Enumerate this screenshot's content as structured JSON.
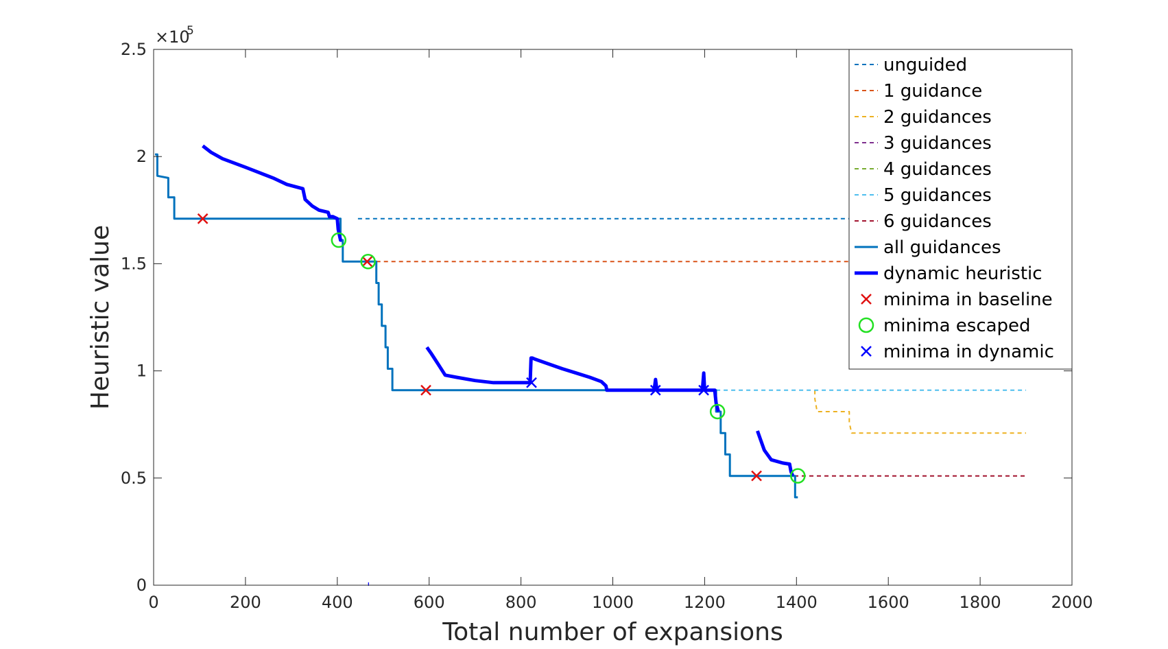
{
  "chart_data": {
    "type": "line",
    "xlabel": "Total number of expansions",
    "ylabel": "Heuristic value",
    "y_multiplier": "×10",
    "y_exponent": "5",
    "xlim": [
      0,
      2000
    ],
    "ylim": [
      0,
      2.5
    ],
    "x_ticks": [
      0,
      200,
      400,
      600,
      800,
      1000,
      1200,
      1400,
      1600,
      1800,
      2000
    ],
    "x_tick_labels": [
      "0",
      "200",
      "400",
      "600",
      "800",
      "1000",
      "1200",
      "1400",
      "1600",
      "1800",
      "2000"
    ],
    "y_ticks": [
      0,
      0.5,
      1,
      1.5,
      2,
      2.5
    ],
    "y_tick_labels": [
      "0",
      "0.5",
      "1",
      "1.5",
      "2",
      "2.5"
    ],
    "grid": false,
    "legend_position": "top-right",
    "series": [
      {
        "name": "unguided",
        "style": "dashed",
        "color": "#0072BD",
        "x": [
          445,
          1900
        ],
        "y": [
          1.71,
          1.71
        ]
      },
      {
        "name": "1 guidance",
        "style": "dashed",
        "color": "#D95319",
        "x": [
          485,
          1900
        ],
        "y": [
          1.51,
          1.51
        ]
      },
      {
        "name": "2 guidances",
        "style": "dashed",
        "color": "#EDB120",
        "x": [
          1440,
          1440,
          1445,
          1515,
          1515,
          1520,
          1900
        ],
        "y": [
          0.91,
          0.87,
          0.81,
          0.81,
          0.76,
          0.71,
          0.71
        ]
      },
      {
        "name": "3 guidances",
        "style": "dashed",
        "color": "#7E2F8E",
        "x": [],
        "y": []
      },
      {
        "name": "4 guidances",
        "style": "dashed",
        "color": "#77AC30",
        "x": [],
        "y": []
      },
      {
        "name": "5 guidances",
        "style": "dashed",
        "color": "#4DBEEE",
        "x": [
          1225,
          1900
        ],
        "y": [
          0.91,
          0.91
        ]
      },
      {
        "name": "6 guidances",
        "style": "dashed",
        "color": "#A2142F",
        "x": [
          1395,
          1900
        ],
        "y": [
          0.51,
          0.51
        ]
      },
      {
        "name": "all guidances",
        "style": "solid",
        "color": "#0072BD",
        "width": 3,
        "x": [
          3,
          8,
          8,
          32,
          32,
          45,
          45,
          52,
          52,
          407,
          407,
          412,
          412,
          452,
          452,
          485,
          485,
          490,
          490,
          497,
          497,
          505,
          505,
          510,
          510,
          515,
          515,
          520,
          520,
          525,
          525,
          535,
          535,
          1225,
          1225,
          1235,
          1235,
          1245,
          1245,
          1255,
          1255,
          1262,
          1262,
          1392,
          1392,
          1397,
          1397,
          1403
        ],
        "y": [
          2.01,
          2.01,
          1.91,
          1.9,
          1.81,
          1.81,
          1.71,
          1.71,
          1.71,
          1.71,
          1.61,
          1.61,
          1.51,
          1.51,
          1.51,
          1.51,
          1.41,
          1.41,
          1.31,
          1.31,
          1.21,
          1.21,
          1.11,
          1.11,
          1.01,
          1.01,
          1.01,
          1.01,
          0.91,
          0.91,
          0.91,
          0.91,
          0.91,
          0.91,
          0.81,
          0.81,
          0.71,
          0.71,
          0.61,
          0.61,
          0.51,
          0.51,
          0.51,
          0.51,
          0.51,
          0.51,
          0.41,
          0.41
        ]
      },
      {
        "name": "dynamic heuristic",
        "style": "solid",
        "color": "#0000FF",
        "width": 5,
        "segments": [
          {
            "x": [
              107,
              125,
              150,
              200,
              260,
              290,
              325,
              330,
              345,
              360,
              380,
              383,
              390,
              400,
              402,
              407,
              410
            ],
            "y": [
              2.05,
              2.02,
              1.99,
              1.95,
              1.9,
              1.87,
              1.85,
              1.8,
              1.77,
              1.75,
              1.74,
              1.72,
              1.72,
              1.71,
              1.66,
              1.61,
              1.61
            ]
          },
          {
            "x": [
              595,
              605,
              620,
              635,
              660,
              700,
              740,
              800,
              820,
              822,
              825,
              830,
              850,
              890,
              920,
              950,
              975,
              985,
              987,
              990,
              1000,
              1090,
              1093,
              1096,
              1100,
              1195,
              1198,
              1200,
              1203,
              1222,
              1225,
              1230
            ],
            "y": [
              1.11,
              1.08,
              1.03,
              0.98,
              0.97,
              0.955,
              0.945,
              0.945,
              0.945,
              1.06,
              1.06,
              1.055,
              1.04,
              1.01,
              0.99,
              0.97,
              0.95,
              0.93,
              0.91,
              0.91,
              0.91,
              0.91,
              0.96,
              0.91,
              0.91,
              0.91,
              0.99,
              0.91,
              0.91,
              0.91,
              0.85,
              0.81
            ]
          },
          {
            "x": [
              1315,
              1320,
              1330,
              1345,
              1370,
              1385,
              1388,
              1392
            ],
            "y": [
              0.72,
              0.69,
              0.63,
              0.585,
              0.57,
              0.565,
              0.53,
              0.51
            ]
          },
          {
            "x": [
              467,
              469
            ],
            "y": [
              0.005,
              0.005
            ]
          }
        ]
      },
      {
        "name": "minima in baseline",
        "style": "marker",
        "marker": "x",
        "color": "#E01010",
        "x": [
          107,
          465,
          593,
          1313
        ],
        "y": [
          1.71,
          1.51,
          0.91,
          0.51
        ]
      },
      {
        "name": "minima escaped",
        "style": "marker",
        "marker": "o",
        "color": "#22E022",
        "x": [
          403,
          467,
          1228,
          1403
        ],
        "y": [
          1.61,
          1.51,
          0.81,
          0.51
        ]
      },
      {
        "name": "minima in dynamic",
        "style": "marker",
        "marker": "x",
        "color": "#0000FF",
        "x": [
          823,
          1093,
          1198
        ],
        "y": [
          0.945,
          0.91,
          0.91
        ]
      }
    ]
  }
}
